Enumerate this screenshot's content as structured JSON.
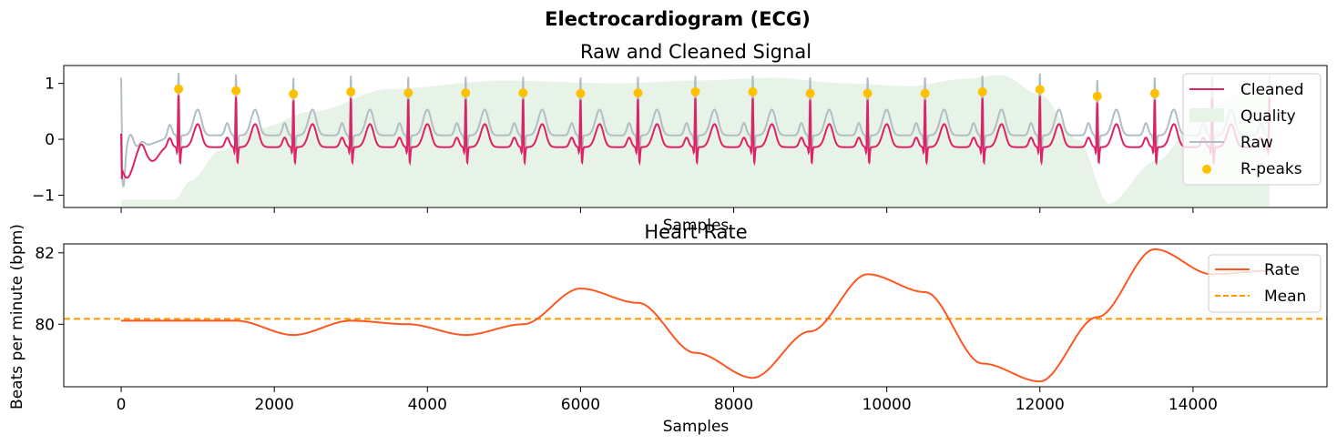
{
  "figure": {
    "suptitle": "Electrocardiogram (ECG)"
  },
  "chart_data": [
    {
      "type": "line",
      "title": "Raw and Cleaned Signal",
      "xlabel": "Samples",
      "ylabel": "",
      "xlim": [
        -750,
        15750
      ],
      "ylim": [
        -1.22,
        1.32
      ],
      "yticks": [
        -1,
        0,
        1
      ],
      "ytick_labels": [
        "−1",
        "0",
        "1"
      ],
      "xticks": [
        0,
        2000,
        4000,
        6000,
        8000,
        10000,
        12000,
        14000
      ],
      "xtick_labels_visible": false,
      "grid": false,
      "legend_position": "top-right",
      "legend": [
        "Cleaned",
        "Quality",
        "Raw",
        "R-peaks"
      ],
      "colors": {
        "cleaned": "#dd2266",
        "quality": "#e6f3e6",
        "raw": "#b0bec5",
        "rpeaks": "#ffc000"
      },
      "series": [
        {
          "name": "R-peaks",
          "x": [
            750,
            1500,
            2250,
            3000,
            3750,
            4500,
            5250,
            6000,
            6750,
            7500,
            8250,
            9000,
            9750,
            10500,
            11250,
            12000,
            12750,
            13500
          ],
          "y": [
            0.9,
            0.87,
            0.81,
            0.85,
            0.83,
            0.83,
            0.83,
            0.82,
            0.83,
            0.85,
            0.85,
            0.82,
            0.82,
            0.82,
            0.85,
            0.89,
            0.77,
            0.82
          ]
        },
        {
          "name": "Quality",
          "x": [
            0,
            700,
            900,
            1300,
            1800,
            2500,
            3500,
            5000,
            6500,
            7500,
            8500,
            9500,
            10300,
            11000,
            11500,
            12000,
            12500,
            12900,
            13500,
            14200,
            14900,
            15000
          ],
          "y": [
            -1.08,
            -1.08,
            -0.75,
            -0.2,
            0.2,
            0.5,
            0.9,
            1.05,
            1.0,
            1.05,
            1.1,
            1.0,
            0.95,
            1.08,
            1.15,
            0.8,
            0.0,
            -1.15,
            -0.4,
            0.6,
            1.0,
            1.0
          ]
        }
      ],
      "signal_notes": "Cleaned and Raw are continuous ECG waveforms from 0 to 15000 samples with R-peaks at the listed positions"
    },
    {
      "type": "line",
      "title": "Heart Rate",
      "xlabel": "Samples",
      "ylabel": "Beats per minute (bpm)",
      "xlim": [
        -750,
        15750
      ],
      "ylim": [
        78.25,
        82.25
      ],
      "yticks": [
        80,
        82
      ],
      "xticks": [
        0,
        2000,
        4000,
        6000,
        8000,
        10000,
        12000,
        14000
      ],
      "grid": false,
      "legend_position": "top-right",
      "legend": [
        "Rate",
        "Mean"
      ],
      "colors": {
        "rate": "#ff5722",
        "mean": "#ff9800"
      },
      "mean": 80.15,
      "series": [
        {
          "name": "Rate",
          "x": [
            0,
            750,
            1500,
            2250,
            3000,
            3750,
            4500,
            5250,
            6000,
            6750,
            7500,
            8250,
            9000,
            9750,
            10500,
            11250,
            12000,
            12750,
            13500,
            14250,
            15000
          ],
          "y": [
            80.1,
            80.1,
            80.1,
            79.7,
            80.1,
            80.0,
            79.7,
            80.0,
            81.0,
            80.6,
            79.2,
            78.5,
            79.8,
            81.4,
            80.9,
            78.9,
            78.4,
            80.2,
            82.1,
            81.4,
            81.5
          ]
        }
      ]
    }
  ]
}
